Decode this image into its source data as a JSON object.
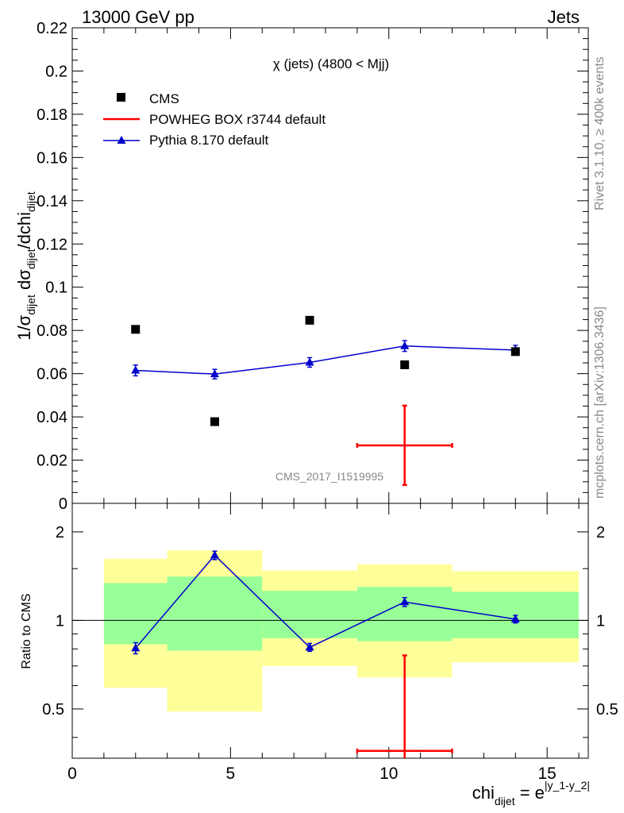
{
  "header": {
    "left": "13000 GeV pp",
    "right": "Jets"
  },
  "side_labels": {
    "rivet": "Rivet 3.1.10, ≥ 400k events",
    "mcplots": "mcplots.cern.ch [arXiv:1306.3436]"
  },
  "chart_data": [
    {
      "type": "scatter",
      "title": "χ (jets) (4800 < Mjj)",
      "watermark": "CMS_2017_I1519995",
      "ylabel_main": "1/σ",
      "ylabel_sub1": "dijet",
      "ylabel_mid": " dσ",
      "ylabel_sub2": "dijet",
      "ylabel_end": "/dchi",
      "ylabel_sub3": "dijet",
      "xlim": [
        0,
        16.3
      ],
      "ylim": [
        0,
        0.22
      ],
      "yticks": [
        0,
        0.02,
        0.04,
        0.06,
        0.08,
        0.1,
        0.12,
        0.14,
        0.16,
        0.18,
        0.2,
        0.22
      ],
      "ytick_labels": [
        "0",
        "0.02",
        "0.04",
        "0.06",
        "0.08",
        "0.1",
        "0.12",
        "0.14",
        "0.16",
        "0.18",
        "0.2",
        "0.22"
      ],
      "legend_position": "top-left",
      "series": [
        {
          "name": "CMS",
          "color": "#000000",
          "marker": "square",
          "points": [
            {
              "x": 2,
              "y": 0.0805
            },
            {
              "x": 4.5,
              "y": 0.0378
            },
            {
              "x": 7.5,
              "y": 0.0847
            },
            {
              "x": 10.5,
              "y": 0.0641
            },
            {
              "x": 14,
              "y": 0.0702
            }
          ]
        },
        {
          "name": "POWHEG BOX r3744 default",
          "color": "#ff0000",
          "marker": "cross",
          "points": [
            {
              "x": 10.5,
              "y": 0.0268,
              "xlo": 9,
              "xhi": 12,
              "ylo": 0.0085,
              "yhi": 0.0452
            }
          ]
        },
        {
          "name": "Pythia 8.170 default",
          "color": "#0000cc",
          "marker": "triangle",
          "points": [
            {
              "x": 2,
              "y": 0.0615,
              "err": 0.0025
            },
            {
              "x": 4.5,
              "y": 0.0598,
              "err": 0.0022
            },
            {
              "x": 7.5,
              "y": 0.0652,
              "err": 0.0022
            },
            {
              "x": 10.5,
              "y": 0.0728,
              "err": 0.0025
            },
            {
              "x": 14,
              "y": 0.0709,
              "err": 0.0022
            }
          ]
        }
      ]
    },
    {
      "type": "scatter",
      "ylabel": "Ratio to CMS",
      "xlabel_main": "chi",
      "xlabel_sub": "dijet",
      "xlabel_eq": " = e",
      "xlabel_sup": "|y_1-y_2|",
      "xlim": [
        0,
        16.3
      ],
      "ylim": [
        0.34,
        2.5
      ],
      "log_y": true,
      "xticks": [
        0,
        5,
        10,
        15
      ],
      "xtick_labels": [
        "0",
        "5",
        "10",
        "15"
      ],
      "yticks": [
        0.5,
        1,
        2
      ],
      "ytick_labels": [
        "0.5",
        "1",
        "2"
      ],
      "bands": [
        {
          "xlo": 1,
          "xhi": 3,
          "green": [
            0.83,
            1.34
          ],
          "yellow": [
            0.59,
            1.62
          ]
        },
        {
          "xlo": 3,
          "xhi": 6,
          "green": [
            0.79,
            1.41
          ],
          "yellow": [
            0.49,
            1.73
          ]
        },
        {
          "xlo": 6,
          "xhi": 9,
          "green": [
            0.87,
            1.26
          ],
          "yellow": [
            0.7,
            1.48
          ]
        },
        {
          "xlo": 9,
          "xhi": 12,
          "green": [
            0.85,
            1.3
          ],
          "yellow": [
            0.64,
            1.55
          ]
        },
        {
          "xlo": 12,
          "xhi": 16,
          "green": [
            0.87,
            1.25
          ],
          "yellow": [
            0.72,
            1.47
          ]
        }
      ],
      "band_colors": {
        "green": "#99ff99",
        "yellow": "#ffff99"
      },
      "series": [
        {
          "name": "POWHEG BOX r3744 default",
          "color": "#ff0000",
          "points": [
            {
              "x": 10.5,
              "y": 0.36,
              "xlo": 9,
              "xhi": 12,
              "yhi": 0.76
            }
          ]
        },
        {
          "name": "Pythia 8.170 default",
          "color": "#0000cc",
          "points": [
            {
              "x": 2,
              "y": 0.805,
              "err": 0.035
            },
            {
              "x": 4.5,
              "y": 1.665,
              "err": 0.055
            },
            {
              "x": 7.5,
              "y": 0.81,
              "err": 0.025
            },
            {
              "x": 10.5,
              "y": 1.155,
              "err": 0.04
            },
            {
              "x": 14,
              "y": 1.01,
              "err": 0.03
            }
          ]
        }
      ]
    }
  ]
}
